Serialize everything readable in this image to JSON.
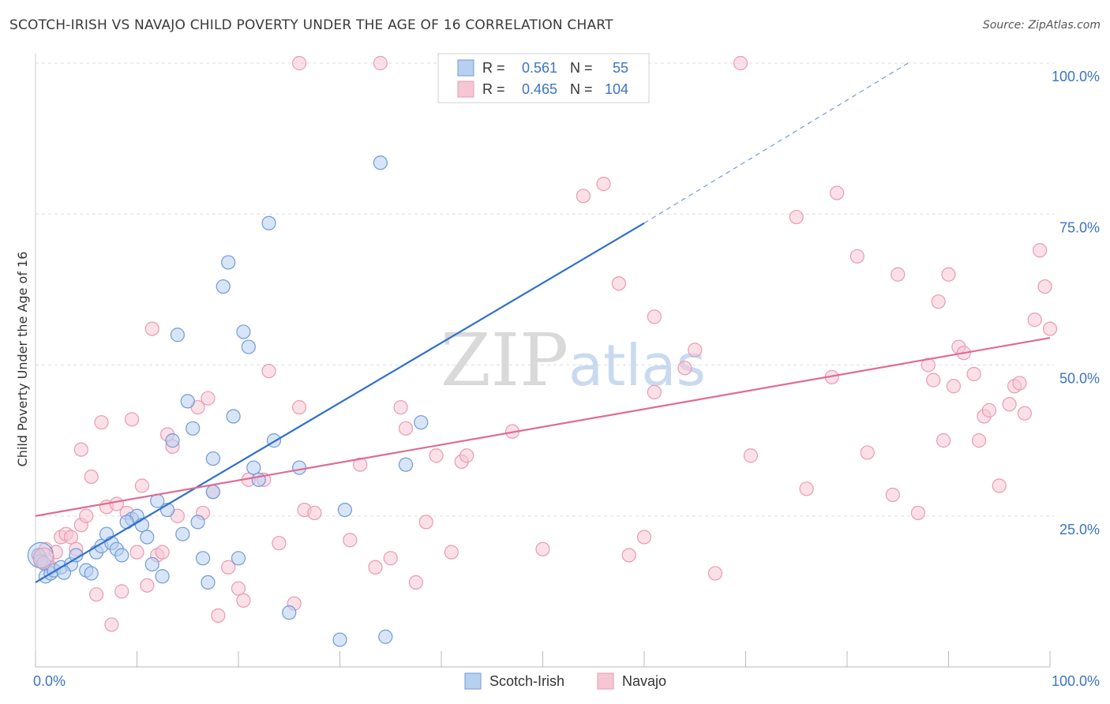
{
  "title": "SCOTCH-IRISH VS NAVAJO CHILD POVERTY UNDER THE AGE OF 16 CORRELATION CHART",
  "source": "Source: ZipAtlas.com",
  "watermark": {
    "zip": "ZIP",
    "atlas": "atlas"
  },
  "colors": {
    "blue_fill": "#b8d0f0",
    "blue_stroke": "#6f9bd6",
    "blue_line": "#2f6fcf",
    "pink_fill": "#f7c6d5",
    "pink_stroke": "#e99ab2",
    "pink_line": "#e06b93",
    "axis_label": "#3b73c8",
    "grid": "#dddddd"
  },
  "legend": {
    "r_label": "R =",
    "n_label": "N =",
    "rows": [
      {
        "series": "Scotch-Irish",
        "r": "0.561",
        "n": "55"
      },
      {
        "series": "Navajo",
        "r": "0.465",
        "n": "104"
      }
    ]
  },
  "bottom_legend": [
    "Scotch-Irish",
    "Navajo"
  ],
  "chart_data": {
    "type": "scatter",
    "title": "SCOTCH-IRISH VS NAVAJO CHILD POVERTY UNDER THE AGE OF 16 CORRELATION CHART",
    "xlabel": "",
    "ylabel": "Child Poverty Under the Age of 16",
    "xlim": [
      0,
      100
    ],
    "ylim": [
      0,
      100
    ],
    "x_tick_labels": [
      "0.0%",
      "100.0%"
    ],
    "y_tick_labels": [
      "100.0%",
      "75.0%",
      "50.0%",
      "25.0%"
    ],
    "y_tick_values": [
      100,
      75,
      50,
      25
    ],
    "grid": true,
    "series": [
      {
        "name": "Scotch-Irish",
        "points": [
          [
            0.3,
            18.5
          ],
          [
            0.5,
            17.5
          ],
          [
            1.0,
            15.0
          ],
          [
            1.5,
            15.5
          ],
          [
            1.8,
            16.0
          ],
          [
            2.5,
            16.5
          ],
          [
            3.5,
            17.0
          ],
          [
            4.0,
            18.5
          ],
          [
            5.0,
            16.0
          ],
          [
            5.5,
            15.5
          ],
          [
            6.0,
            19.0
          ],
          [
            6.5,
            20.0
          ],
          [
            7.0,
            22.0
          ],
          [
            7.5,
            20.5
          ],
          [
            8.0,
            19.5
          ],
          [
            8.5,
            18.5
          ],
          [
            9.5,
            24.5
          ],
          [
            10.0,
            25.0
          ],
          [
            10.5,
            23.5
          ],
          [
            11.0,
            21.5
          ],
          [
            11.5,
            17.0
          ],
          [
            12.0,
            27.5
          ],
          [
            12.5,
            15.0
          ],
          [
            13.0,
            26.0
          ],
          [
            13.5,
            37.5
          ],
          [
            14.0,
            55.0
          ],
          [
            14.5,
            22.0
          ],
          [
            15.0,
            44.0
          ],
          [
            15.5,
            39.5
          ],
          [
            16.0,
            24.0
          ],
          [
            16.5,
            18.0
          ],
          [
            17.0,
            14.0
          ],
          [
            17.5,
            29.0
          ],
          [
            17.5,
            34.5
          ],
          [
            18.5,
            63.0
          ],
          [
            19.0,
            67.0
          ],
          [
            19.5,
            41.5
          ],
          [
            20.0,
            18.0
          ],
          [
            20.5,
            55.5
          ],
          [
            21.0,
            53.0
          ],
          [
            21.5,
            33.0
          ],
          [
            22.0,
            31.0
          ],
          [
            23.0,
            73.5
          ],
          [
            23.5,
            37.5
          ],
          [
            25.0,
            9.0
          ],
          [
            26.0,
            33.0
          ],
          [
            30.0,
            4.5
          ],
          [
            30.5,
            26.0
          ],
          [
            34.0,
            83.5
          ],
          [
            34.5,
            5.0
          ],
          [
            36.5,
            33.5
          ],
          [
            38.0,
            40.5
          ],
          [
            9.0,
            24.0
          ],
          [
            2.8,
            15.6
          ],
          [
            0.8,
            17.2
          ]
        ]
      },
      {
        "name": "Navajo",
        "points": [
          [
            0.5,
            18.0
          ],
          [
            1.0,
            19.5
          ],
          [
            1.5,
            16.5
          ],
          [
            2.0,
            19.0
          ],
          [
            2.5,
            21.5
          ],
          [
            3.0,
            22.0
          ],
          [
            3.5,
            21.5
          ],
          [
            4.0,
            19.5
          ],
          [
            4.5,
            36.0
          ],
          [
            4.5,
            23.5
          ],
          [
            5.0,
            25.0
          ],
          [
            5.5,
            31.5
          ],
          [
            6.0,
            12.0
          ],
          [
            6.5,
            40.5
          ],
          [
            7.0,
            26.5
          ],
          [
            7.5,
            7.0
          ],
          [
            8.0,
            27.0
          ],
          [
            8.5,
            12.5
          ],
          [
            9.0,
            25.5
          ],
          [
            9.5,
            41.0
          ],
          [
            10.0,
            19.0
          ],
          [
            10.5,
            30.0
          ],
          [
            11.0,
            13.5
          ],
          [
            11.5,
            56.0
          ],
          [
            12.0,
            18.5
          ],
          [
            12.5,
            19.0
          ],
          [
            13.0,
            38.5
          ],
          [
            13.5,
            36.5
          ],
          [
            14.0,
            25.0
          ],
          [
            16.0,
            43.0
          ],
          [
            16.5,
            25.5
          ],
          [
            17.0,
            44.5
          ],
          [
            17.5,
            29.0
          ],
          [
            18.0,
            8.5
          ],
          [
            19.0,
            16.5
          ],
          [
            20.0,
            13.0
          ],
          [
            20.5,
            11.0
          ],
          [
            21.0,
            31.0
          ],
          [
            22.5,
            31.0
          ],
          [
            23.0,
            49.0
          ],
          [
            24.0,
            20.5
          ],
          [
            25.5,
            10.5
          ],
          [
            26.0,
            43.0
          ],
          [
            26.5,
            26.0
          ],
          [
            27.5,
            25.5
          ],
          [
            26.0,
            100.0
          ],
          [
            31.0,
            21.0
          ],
          [
            32.0,
            33.5
          ],
          [
            33.5,
            16.5
          ],
          [
            34.0,
            100.0
          ],
          [
            35.0,
            18.0
          ],
          [
            36.0,
            43.0
          ],
          [
            36.5,
            39.5
          ],
          [
            37.5,
            14.0
          ],
          [
            38.5,
            24.0
          ],
          [
            39.5,
            35.0
          ],
          [
            40.5,
            100.0
          ],
          [
            41.0,
            19.0
          ],
          [
            42.0,
            34.0
          ],
          [
            42.5,
            35.0
          ],
          [
            47.0,
            39.0
          ],
          [
            50.0,
            19.5
          ],
          [
            54.0,
            78.0
          ],
          [
            56.0,
            80.0
          ],
          [
            57.5,
            63.5
          ],
          [
            58.5,
            18.5
          ],
          [
            60.0,
            21.5
          ],
          [
            61.0,
            58.0
          ],
          [
            61.0,
            45.5
          ],
          [
            64.0,
            49.5
          ],
          [
            65.0,
            52.5
          ],
          [
            67.0,
            15.5
          ],
          [
            69.5,
            100.0
          ],
          [
            70.5,
            35.0
          ],
          [
            75.0,
            74.5
          ],
          [
            76.0,
            29.5
          ],
          [
            78.5,
            48.0
          ],
          [
            79.0,
            78.5
          ],
          [
            81.0,
            68.0
          ],
          [
            82.0,
            35.5
          ],
          [
            84.5,
            28.5
          ],
          [
            85.0,
            65.0
          ],
          [
            87.0,
            25.5
          ],
          [
            88.0,
            50.0
          ],
          [
            88.5,
            47.5
          ],
          [
            89.0,
            60.5
          ],
          [
            89.5,
            37.5
          ],
          [
            90.0,
            65.0
          ],
          [
            90.5,
            46.5
          ],
          [
            91.0,
            53.0
          ],
          [
            91.5,
            52.0
          ],
          [
            92.5,
            48.5
          ],
          [
            93.0,
            37.5
          ],
          [
            93.5,
            41.5
          ],
          [
            94.0,
            42.5
          ],
          [
            95.0,
            30.0
          ],
          [
            96.0,
            43.5
          ],
          [
            96.5,
            46.5
          ],
          [
            97.0,
            47.0
          ],
          [
            97.5,
            42.0
          ],
          [
            98.5,
            57.5
          ],
          [
            99.0,
            69.0
          ],
          [
            99.5,
            63.0
          ],
          [
            100.0,
            56.0
          ]
        ]
      }
    ],
    "trend_lines": [
      {
        "series": "Scotch-Irish",
        "x0": 0,
        "y0": 14.0,
        "x1": 60,
        "y1": 73.5,
        "dashed_to_x": 86,
        "dashed_to_y": 100
      },
      {
        "series": "Navajo",
        "x0": 0,
        "y0": 25.0,
        "x1": 100,
        "y1": 54.5
      }
    ]
  }
}
